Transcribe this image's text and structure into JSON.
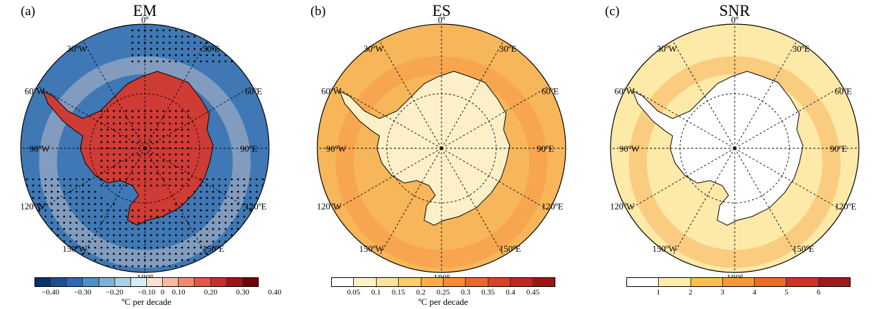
{
  "panels": [
    {
      "letter": "(a)",
      "title": "EM",
      "colors": [
        "#08306b",
        "#1b4f91",
        "#2f6ab0",
        "#4f8fc6",
        "#7fb1d8",
        "#a9d1e6",
        "#d8ecf3",
        "#fbe0d3",
        "#f8b9a0",
        "#f08b70",
        "#e2574a",
        "#c72e2e",
        "#9e1418",
        "#6b0308"
      ],
      "ticks": [
        "−0.40",
        "−0.30",
        "−0.20",
        "−0.10",
        "0",
        "0.10",
        "0.20",
        "0.30",
        "0.40"
      ],
      "tick_positions": [
        1,
        3,
        5,
        7,
        8,
        9,
        11,
        13,
        15
      ],
      "unit": "ºC per decade",
      "ocean": "#3f78b4",
      "land": "#cf3b35",
      "stippled": true
    },
    {
      "letter": "(b)",
      "title": "ES",
      "colors": [
        "#ffffff",
        "#fdf2c4",
        "#fde3a0",
        "#fccb72",
        "#f9ac4e",
        "#f58a3c",
        "#ea6830",
        "#da4127",
        "#c2251f",
        "#9b1616"
      ],
      "ticks": [
        "0.05",
        "0.1",
        "0.15",
        "0.2",
        "0.25",
        "0.3",
        "0.35",
        "0.4",
        "0.45"
      ],
      "tick_positions": [
        1,
        2,
        3,
        4,
        5,
        6,
        7,
        8,
        9
      ],
      "unit": "ºC per decade",
      "ocean": "#f7b659",
      "land": "#fdf0c8",
      "stippled": false
    },
    {
      "letter": "(c)",
      "title": "SNR",
      "colors": [
        "#ffffff",
        "#fdecab",
        "#f9bf55",
        "#f39936",
        "#eb6b2c",
        "#d3302a",
        "#a01a1c"
      ],
      "ticks": [
        "1",
        "2",
        "3",
        "4",
        "5",
        "6"
      ],
      "tick_positions": [
        1,
        2,
        3,
        4,
        5,
        6
      ],
      "unit": "",
      "ocean": "#fde9a8",
      "land": "#ffffff",
      "stippled": false
    }
  ],
  "longitudes": {
    "top": "0º",
    "bottom": "180º",
    "left": "90ºW",
    "right": "90ºE",
    "w30": "30ºW",
    "w60": "60ºW",
    "w120": "120ºW",
    "w150": "150ºW",
    "e30": "30ºE",
    "e60": "60ºE",
    "e120": "120ºE",
    "e150": "150ºE"
  }
}
